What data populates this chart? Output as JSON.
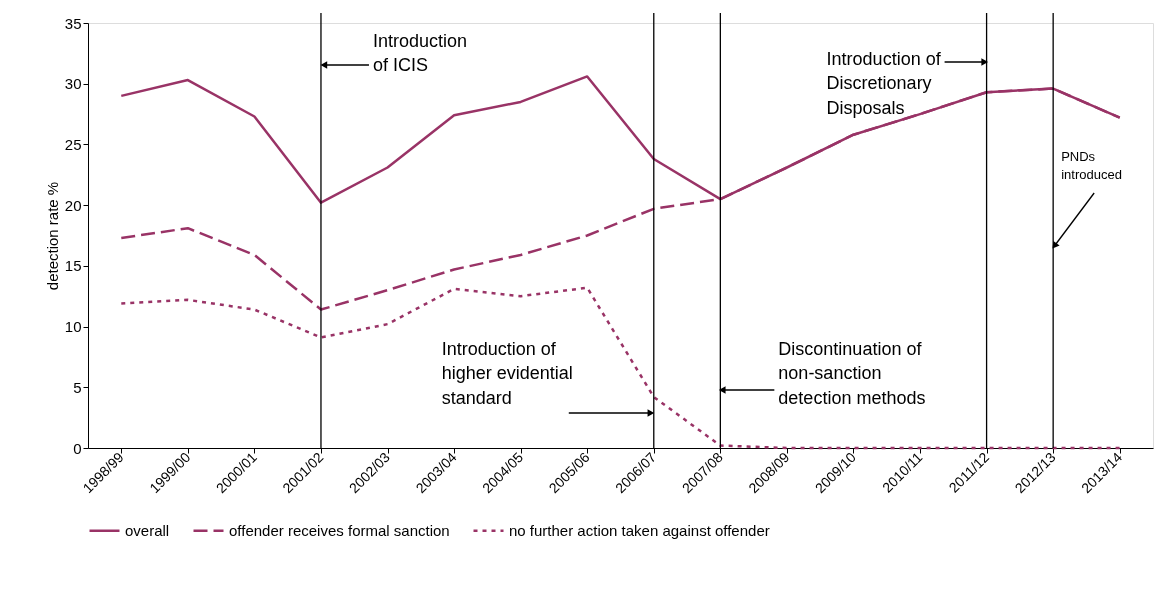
{
  "chart_data": {
    "type": "line",
    "ylabel": "detection rate %",
    "categories": [
      "1998/99",
      "1999/00",
      "2000/01",
      "2001/02",
      "2002/03",
      "2003/04",
      "2004/05",
      "2005/06",
      "2006/07",
      "2007/08",
      "2008/09",
      "2009/10",
      "2010/11",
      "2011/12",
      "2012/13",
      "2013/14"
    ],
    "series": [
      {
        "name": "overall",
        "color": "#993366",
        "line_style": "solid",
        "values": [
          29.0,
          30.3,
          27.3,
          20.2,
          23.1,
          27.4,
          28.5,
          30.6,
          23.8,
          20.5,
          23.1,
          25.8,
          27.5,
          29.3,
          29.6,
          27.2
        ]
      },
      {
        "name": "offender receives formal sanction",
        "color": "#993366",
        "line_style": "dashed",
        "values": [
          17.3,
          18.1,
          15.9,
          11.4,
          13.0,
          14.7,
          15.9,
          17.5,
          19.7,
          20.5,
          23.1,
          25.8,
          27.5,
          29.3,
          29.6,
          27.2
        ]
      },
      {
        "name": "no further action taken against offender",
        "color": "#993366",
        "line_style": "dotted",
        "values": [
          11.9,
          12.2,
          11.4,
          9.1,
          10.2,
          13.1,
          12.5,
          13.2,
          4.2,
          0.2,
          0,
          0,
          0,
          0,
          0,
          0
        ]
      }
    ],
    "ylim": [
      0,
      35
    ],
    "yticks": [
      0,
      5,
      10,
      15,
      20,
      25,
      30,
      35
    ],
    "grid": false,
    "legend": "bottom",
    "ref_lines": [
      {
        "axis": "x",
        "value": "2001/02",
        "label": "Introduction of ICIS",
        "color": "#000000"
      },
      {
        "axis": "x",
        "value": "2006/07",
        "label": "Introduction of higher evidential standard",
        "color": "#000000"
      },
      {
        "axis": "x",
        "value": "2007/08",
        "label": "Discontinuation of non-sanction detection methods",
        "color": "#000000"
      },
      {
        "axis": "x",
        "value": "2011/12",
        "label": "Introduction of Discretionary Disposals",
        "color": "#000000"
      },
      {
        "axis": "x",
        "value": "2012/13",
        "label": "PNDs introduced",
        "color": "#000000"
      }
    ]
  }
}
